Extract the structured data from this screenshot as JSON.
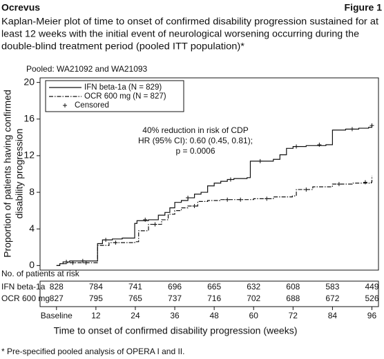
{
  "header": {
    "left": "Ocrevus",
    "right": "Figure 1"
  },
  "chart_data": {
    "type": "kaplan-meier",
    "title": [
      "Kaplan-Meier plot of time to onset of confirmed disability progression sustained for at",
      "least 12 weeks with the initial event of neurological worsening occurring during the",
      "double-blind treatment period (pooled ITT population)*"
    ],
    "subtitle": "Pooled: WA21092 and WA21093",
    "y_label": [
      "Proportion of patients having confirmed",
      "disability progression"
    ],
    "x_label": "Time to onset of confirmed disability progression (weeks)",
    "xlim": [
      -5,
      98
    ],
    "ylim": [
      -0.5,
      20.5
    ],
    "xticks": [
      {
        "value": 0,
        "label": "Baseline"
      },
      12,
      24,
      36,
      48,
      60,
      72,
      84,
      96
    ],
    "yticks": [
      0,
      4,
      8,
      12,
      16,
      20
    ],
    "censored_label": "Censored",
    "annotation": [
      "40% reduction in risk of CDP",
      "HR (95% CI): 0.60 (0.45, 0.81);",
      "p = 0.0006"
    ],
    "series": [
      {
        "name": "IFN beta-1a (N = 829)",
        "color": "#111111",
        "style": "solid",
        "x": [
          0,
          1,
          2,
          4,
          11.8,
          12.5,
          14,
          17,
          20,
          23.8,
          24.5,
          28,
          31,
          33,
          34.5,
          36,
          38,
          40,
          42,
          44,
          46,
          48,
          50,
          52,
          54,
          58,
          59,
          66,
          68,
          70,
          72,
          76,
          82,
          84,
          88,
          92,
          95,
          96
        ],
        "values": [
          0,
          0.2,
          0.4,
          0.5,
          0.5,
          2.4,
          2.8,
          2.9,
          3,
          4.6,
          4.9,
          5,
          5.5,
          5.8,
          6.3,
          6.9,
          7.1,
          7.4,
          7.8,
          8,
          8.7,
          9,
          9.2,
          9.4,
          9.5,
          9.6,
          11.4,
          11.6,
          12.1,
          12.8,
          13,
          13.1,
          13.2,
          14.8,
          14.9,
          15,
          15.1,
          15.3
        ],
        "censored_x": [
          3,
          8,
          15,
          27,
          40,
          53,
          62,
          73,
          80,
          90,
          96
        ],
        "censored_y": [
          0.4,
          0.5,
          2.8,
          5,
          7.4,
          9.4,
          11.4,
          13,
          13.2,
          14.9,
          15.3
        ]
      },
      {
        "name": "OCR 600 mg (N = 827)",
        "color": "#111111",
        "style": "dashdot",
        "x": [
          0,
          1,
          3,
          11.8,
          12.5,
          16,
          23.8,
          25,
          28,
          32,
          34,
          36,
          38,
          40,
          43,
          46,
          50,
          60,
          66,
          71.8,
          73,
          78,
          84,
          90,
          95.8,
          96
        ],
        "values": [
          0,
          0.2,
          0.3,
          0.3,
          2.2,
          2.5,
          2.6,
          3.8,
          4.5,
          5,
          5.6,
          6,
          6.3,
          6.5,
          7,
          7.1,
          7.2,
          7.3,
          7.5,
          7.6,
          8.3,
          8.6,
          8.9,
          9,
          9.1,
          9.8
        ],
        "censored_x": [
          5,
          9,
          18,
          30,
          42,
          52,
          56,
          64,
          76,
          86,
          94
        ],
        "censored_y": [
          0.3,
          0.3,
          2.5,
          4.5,
          6.5,
          7.2,
          7.2,
          7.3,
          8.3,
          8.9,
          9.1
        ]
      }
    ],
    "risk_table": {
      "title": "No. of patients at risk",
      "rows": [
        {
          "label": "IFN beta-1a",
          "values": [
            828,
            784,
            741,
            696,
            665,
            632,
            608,
            583,
            449
          ]
        },
        {
          "label": "OCR 600 mg",
          "values": [
            827,
            795,
            765,
            737,
            716,
            702,
            688,
            672,
            526
          ]
        }
      ]
    }
  },
  "footnote": "* Pre-specified pooled analysis of OPERA I and II."
}
